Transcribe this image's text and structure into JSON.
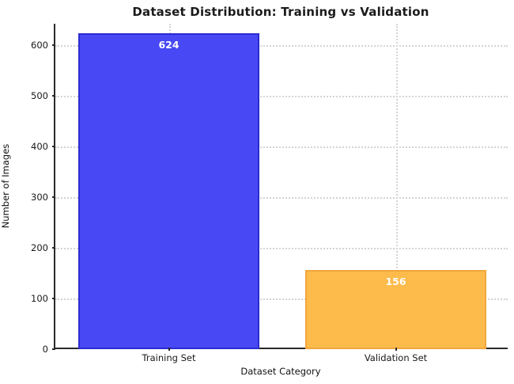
{
  "figure": {
    "title": "Dataset Distribution: Training vs Validation",
    "xlabel": "Dataset Category",
    "ylabel": "Number of Images"
  },
  "chart_data": {
    "type": "bar",
    "title": "Dataset Distribution: Training vs Validation",
    "xlabel": "Dataset Category",
    "ylabel": "Number of Images",
    "categories": [
      "Training Set",
      "Validation Set"
    ],
    "values": [
      624,
      156
    ],
    "bar_value_labels": [
      "624",
      "156"
    ],
    "bar_fill_colors": [
      "#4848f4",
      "#fdbb4c"
    ],
    "bar_edge_colors": [
      "#2c2cd2",
      "#f0a63c"
    ],
    "value_label_color": "#ffffff",
    "ylim": [
      0,
      642
    ],
    "yticks": [
      0,
      100,
      200,
      300,
      400,
      500,
      600
    ],
    "grid": "dotted",
    "grid_color": "#d4d4d4",
    "legend": "none",
    "background_color": "#ffffff"
  }
}
